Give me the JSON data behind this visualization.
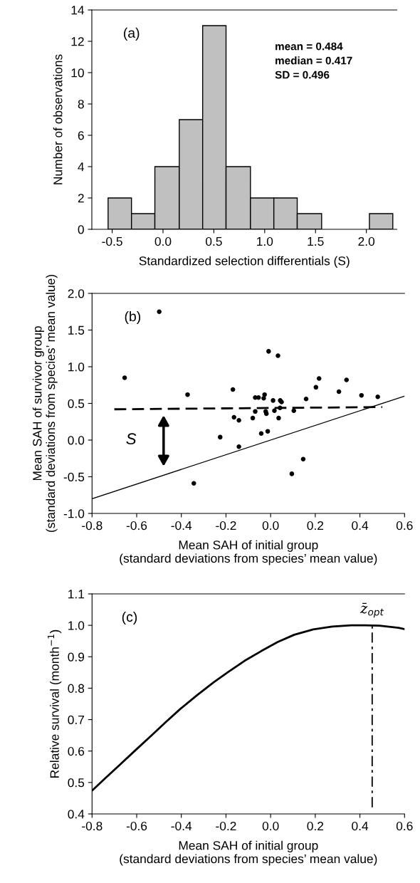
{
  "chart_data": [
    {
      "type": "histogram",
      "xlabel": "Standardized selection differentials (S)",
      "ylabel": "Number of observations",
      "bins": [
        -0.54,
        -0.31,
        -0.08,
        0.16,
        0.39,
        0.62,
        0.86,
        1.09,
        1.32,
        1.56,
        2.03,
        2.26
      ],
      "values": [
        2,
        1,
        4,
        7,
        13,
        4,
        2,
        2,
        1,
        0,
        1
      ],
      "color": "#c0c0c0",
      "xlim": [
        -0.7,
        2.3
      ],
      "xticks": [
        -0.5,
        {
          "value": 0,
          "label": "0.0"
        },
        0.5,
        {
          "value": 1,
          "label": "1.0"
        },
        1.5,
        {
          "value": 2,
          "label": "2.0"
        }
      ],
      "ylim": [
        0,
        14
      ],
      "yticks": [
        0,
        2,
        4,
        6,
        8,
        10,
        12,
        14
      ],
      "annotations": [
        "(a)",
        "mean = 0.484",
        "median = 0.417",
        "SD = 0.496"
      ],
      "grid": false,
      "legend": false
    },
    {
      "type": "scatter",
      "xlabel": "Mean SAH of initial group\n(standard deviations from species’ mean value)",
      "ylabel": "Mean SAH of survivor group\n(standard deviations from species’ mean value)",
      "series": [
        {
          "type": "scatter",
          "color": "#000000",
          "marker": "circle",
          "x": [
            -0.499,
            -0.654,
            -0.372,
            -0.344,
            -0.226,
            -0.169,
            -0.164,
            -0.142,
            -0.142,
            -0.069,
            -0.054,
            -0.027,
            -0.031,
            -0.08,
            -0.069,
            -0.022,
            -0.019,
            -0.042,
            -0.013,
            -0.009,
            0.033,
            0.011,
            0.017,
            0.036,
            0.043,
            0.049,
            0.042,
            0.104,
            0.159,
            0.146,
            0.095,
            0.203,
            0.217,
            0.306,
            0.34,
            0.407,
            0.48
          ],
          "values": [
            1.75,
            0.85,
            0.62,
            -0.59,
            0.04,
            0.69,
            0.31,
            0.27,
            -0.09,
            0.58,
            0.58,
            0.62,
            0.57,
            0.3,
            0.39,
            0.39,
            0.36,
            0.09,
            0.12,
            1.21,
            1.15,
            0.54,
            0.4,
            0.3,
            0.54,
            0.52,
            0.44,
            0.4,
            0.56,
            -0.26,
            -0.46,
            0.72,
            0.84,
            0.66,
            0.82,
            0.61,
            0.59
          ]
        },
        {
          "type": "line",
          "color": "#000000",
          "line_style": "dashed",
          "marker": "none",
          "x": [
            -0.7,
            0.5
          ],
          "values": [
            0.42,
            0.45
          ]
        },
        {
          "type": "line",
          "color": "#000000",
          "line_style": "solid",
          "marker": "none",
          "x": [
            -0.8,
            0.6
          ],
          "values": [
            -0.8,
            0.6
          ]
        }
      ],
      "xlim": [
        -0.8,
        0.6
      ],
      "xticks": [
        -0.8,
        -0.6,
        -0.4,
        -0.2,
        {
          "value": 0,
          "label": "0.0"
        },
        0.2,
        0.4,
        0.6
      ],
      "ylim": [
        -1.0,
        2.0
      ],
      "yticks": [
        {
          "value": -1,
          "label": "-1.0"
        },
        -0.5,
        {
          "value": 0,
          "label": "0.0"
        },
        0.5,
        {
          "value": 1,
          "label": "1.0"
        },
        1.5,
        {
          "value": 2,
          "label": "2.0"
        }
      ],
      "annotations": [
        "(b)",
        "S"
      ],
      "grid": false,
      "legend": false
    },
    {
      "type": "line",
      "xlabel": "Mean SAH of initial group\n(standard deviations from species’ mean value)",
      "ylabel": "Relative survival (month$^{−1}$)",
      "series": [
        {
          "color": "#000000",
          "line_style": "solid",
          "marker": "none",
          "x": [
            -0.8,
            -0.743,
            -0.679,
            -0.605,
            -0.53,
            -0.467,
            -0.403,
            -0.329,
            -0.255,
            -0.191,
            -0.117,
            -0.042,
            0.032,
            0.106,
            0.191,
            0.276,
            0.361,
            0.424,
            0.488,
            0.573,
            0.6
          ],
          "values": [
            0.474,
            0.512,
            0.554,
            0.603,
            0.652,
            0.694,
            0.735,
            0.778,
            0.819,
            0.851,
            0.887,
            0.918,
            0.947,
            0.97,
            0.987,
            0.996,
            1.0,
            1.0,
            0.999,
            0.992,
            0.988
          ]
        }
      ],
      "ref_lines": [
        {
          "axis": "x",
          "value": 0.455,
          "label": "z̄$_{opt}$",
          "color": "#000000",
          "line_style": "dashdot"
        }
      ],
      "xlim": [
        -0.8,
        0.6
      ],
      "xticks": [
        -0.8,
        -0.6,
        -0.4,
        -0.2,
        {
          "value": 0,
          "label": "0.0"
        },
        0.2,
        0.4,
        0.6
      ],
      "ylim": [
        0.4,
        1.1
      ],
      "yticks": [
        0.4,
        0.5,
        0.6,
        0.7,
        0.8,
        0.9,
        {
          "value": 1,
          "label": "1.0"
        },
        1.1
      ],
      "annotations": [
        "(c)"
      ],
      "grid": false,
      "legend": false
    }
  ]
}
